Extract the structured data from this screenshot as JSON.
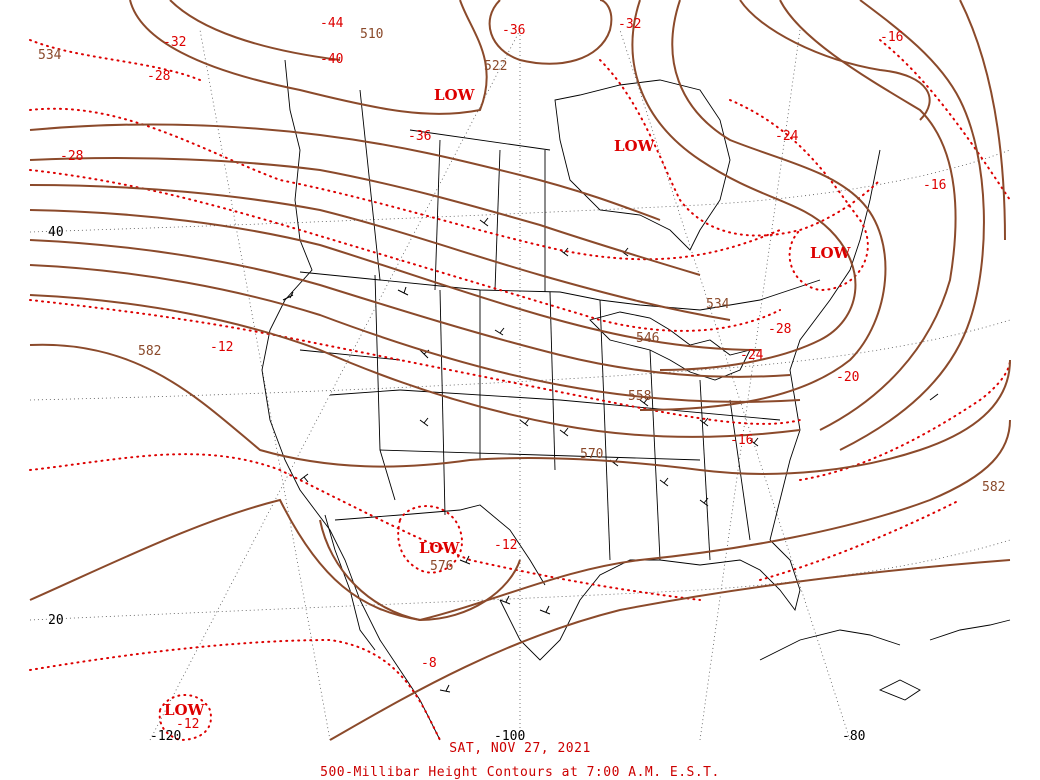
{
  "title": "500-Millibar Height Contours at 7:00 A.M. E.S.T.",
  "date": "SAT, NOV 27, 2021",
  "colors": {
    "height_contour": "#8b4a2b",
    "temperature_isotherm": "#dd0000",
    "map_lines": "#000000",
    "grid": "#555555"
  },
  "low_centers": [
    "LOW",
    "LOW",
    "LOW",
    "LOW",
    "LOW"
  ],
  "height_labels": [
    "534",
    "510",
    "522",
    "534",
    "546",
    "558",
    "570",
    "582",
    "582",
    "576"
  ],
  "temperature_labels": [
    "-44",
    "-32",
    "-28",
    "-40",
    "-36",
    "-32",
    "-36",
    "-28",
    "-24",
    "-16",
    "-16",
    "-28",
    "-24",
    "-20",
    "-16",
    "-12",
    "-12",
    "-8",
    "-12"
  ],
  "latitude_labels": [
    "40",
    "20"
  ],
  "longitude_labels": [
    "-120",
    "-100",
    "-80"
  ]
}
